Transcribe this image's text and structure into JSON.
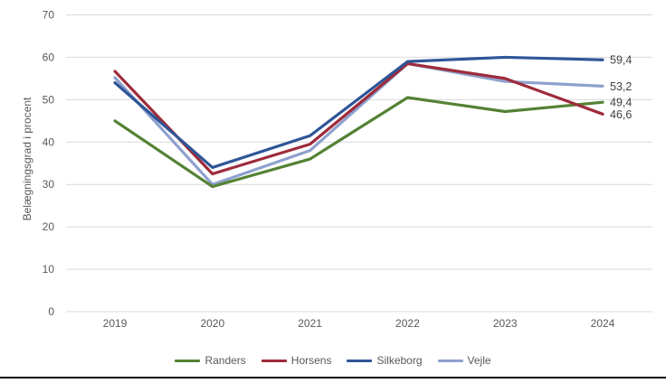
{
  "chart_data": {
    "type": "line",
    "title": "",
    "xlabel": "",
    "ylabel": "Belægningsgrad i procent",
    "categories": [
      "2019",
      "2020",
      "2021",
      "2022",
      "2023",
      "2024"
    ],
    "y_ticks": [
      0,
      10,
      20,
      30,
      40,
      50,
      60,
      70
    ],
    "ylim": [
      0,
      70
    ],
    "grid": true,
    "legend_position": "bottom",
    "decimal_separator": ",",
    "series": [
      {
        "name": "Randers",
        "color": "#548235",
        "values": [
          45.0,
          29.5,
          36.0,
          50.5,
          47.2,
          49.4
        ],
        "end_label": "49,4"
      },
      {
        "name": "Horsens",
        "color": "#9E2B3B",
        "values": [
          56.7,
          32.5,
          39.5,
          58.5,
          55.0,
          46.6
        ],
        "end_label": "46,6"
      },
      {
        "name": "Silkeborg",
        "color": "#2E5597",
        "values": [
          54.0,
          34.0,
          41.5,
          59.0,
          60.0,
          59.4
        ],
        "end_label": "59,4"
      },
      {
        "name": "Vejle",
        "color": "#8EA0CE",
        "values": [
          55.2,
          30.0,
          38.0,
          58.5,
          54.3,
          53.2
        ],
        "end_label": "53,2"
      }
    ],
    "draw_order": [
      3,
      0,
      1,
      2
    ]
  },
  "colors": {
    "grid": "#D9D9D9",
    "axis_text": "#595959",
    "end_label_text": "#3f3f3f",
    "bottom_rule": "#000000",
    "background": "#ffffff"
  }
}
